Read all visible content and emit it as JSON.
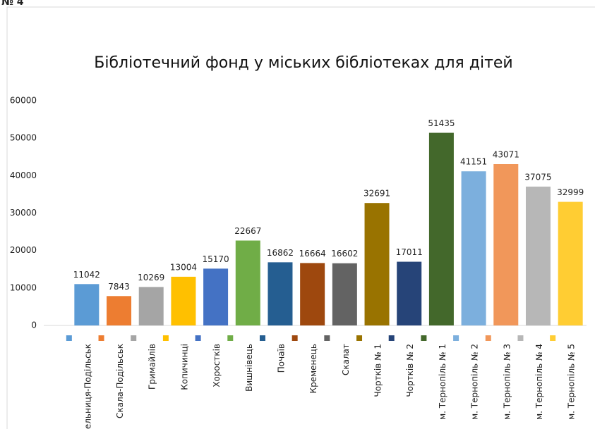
{
  "page_label": "№ 4",
  "chart_data": {
    "type": "bar",
    "title": "Бібліотечний фонд у міських бібліотеках для дітей",
    "categories": [
      "Мельниця-Подільськ",
      "Скала-Подільськ",
      "Гримайлів",
      "Копичинці",
      "Хоростків",
      "Вишнівець",
      "Почаїв",
      "Кременець",
      "Скалат",
      "Чортків № 1",
      "Чортків № 2",
      "м. Тернопіль № 1",
      "м. Тернопіль № 2",
      "м. Тернопіль № 3",
      "м. Тернопіль № 4",
      "м. Тернопіль № 5"
    ],
    "values": [
      11042,
      7843,
      10269,
      13004,
      15170,
      22667,
      16862,
      16664,
      16602,
      32691,
      17011,
      51435,
      41151,
      43071,
      37075,
      32999
    ],
    "colors": [
      "#5b9bd5",
      "#ed7d31",
      "#a5a5a5",
      "#ffc000",
      "#4472c4",
      "#70ad47",
      "#255e91",
      "#9e480e",
      "#636363",
      "#997300",
      "#264478",
      "#43682b",
      "#7cafdd",
      "#f1975a",
      "#b7b7b7",
      "#ffcd33"
    ],
    "ylim": [
      0,
      60000
    ],
    "yticks": [
      0,
      10000,
      20000,
      30000,
      40000,
      50000,
      60000
    ],
    "grid": false
  }
}
